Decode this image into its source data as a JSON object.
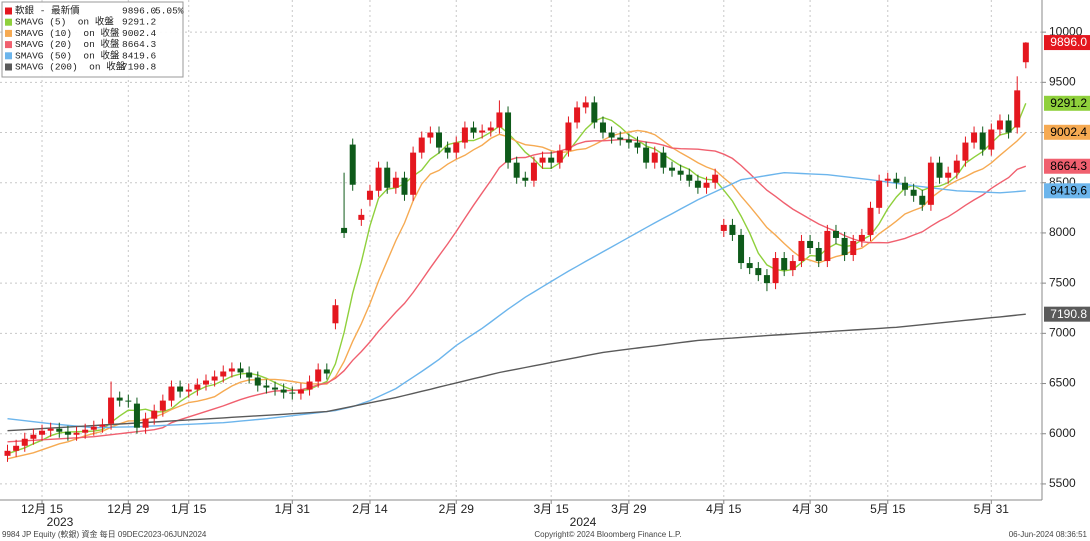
{
  "chart_data": {
    "type": "candlestick",
    "categories": [
      null,
      null,
      null,
      null,
      "12月 15",
      null,
      null,
      null,
      null,
      null,
      null,
      null,
      null,
      null,
      "12月 29",
      null,
      null,
      null,
      null,
      null,
      null,
      "1月 15",
      null,
      null,
      null,
      null,
      null,
      null,
      null,
      null,
      null,
      null,
      null,
      "1月 31",
      null,
      null,
      null,
      null,
      null,
      null,
      null,
      null,
      "2月 14",
      null,
      null,
      null,
      null,
      null,
      null,
      null,
      null,
      null,
      "2月 29",
      null,
      null,
      null,
      null,
      null,
      null,
      null,
      null,
      null,
      null,
      "3月 15",
      null,
      null,
      null,
      null,
      null,
      null,
      null,
      null,
      "3月 29",
      null,
      null,
      null,
      null,
      null,
      null,
      null,
      null,
      null,
      null,
      "4月 15",
      null,
      null,
      null,
      null,
      null,
      null,
      null,
      null,
      null,
      "4月 30",
      null,
      null,
      null,
      null,
      null,
      null,
      null,
      null,
      "5月 15",
      null,
      null,
      null,
      null,
      null,
      null,
      null,
      null,
      null,
      null,
      null,
      "5月 31",
      null,
      null,
      null,
      null
    ],
    "years": [
      "2023",
      "2024"
    ],
    "price": {
      "name": "軟銀 - 最新價",
      "last": {
        "value": 9896.0,
        "label": "9896.0"
      },
      "change": {
        "value": 5.05,
        "label": "5.05%"
      },
      "up_color": "#e4171f",
      "down_color": "#0e5a1a",
      "open": [
        5780,
        5830,
        5880,
        5950,
        5990,
        6030,
        6050,
        6020,
        5990,
        6010,
        6040,
        6070,
        6100,
        6360,
        6330,
        6300,
        6060,
        6150,
        6230,
        6330,
        6470,
        6420,
        6440,
        6490,
        6530,
        6570,
        6620,
        6650,
        6610,
        6560,
        6480,
        6460,
        6440,
        6410,
        6400,
        6440,
        6520,
        6640,
        7100,
        8050,
        8880,
        8130,
        8330,
        8420,
        8650,
        8450,
        8550,
        8380,
        8800,
        8950,
        9000,
        8850,
        8800,
        8900,
        9050,
        9000,
        9020,
        9050,
        9200,
        8700,
        8550,
        8520,
        8700,
        8750,
        8700,
        8820,
        9100,
        9250,
        9300,
        9100,
        9000,
        8950,
        8930,
        8900,
        8850,
        8700,
        8800,
        8650,
        8620,
        8580,
        8520,
        8450,
        8500,
        8020,
        8080,
        7980,
        7700,
        7650,
        7580,
        7500,
        7750,
        7630,
        7720,
        7920,
        7850,
        7720,
        8020,
        7950,
        7780,
        7920,
        7980,
        8250,
        8520,
        8540,
        8500,
        8430,
        8370,
        8280,
        8700,
        8550,
        8600,
        8720,
        8900,
        9000,
        8830,
        9030,
        9120,
        9050,
        9700
      ],
      "high": [
        5890,
        5940,
        6010,
        6050,
        6090,
        6110,
        6110,
        6080,
        6070,
        6100,
        6130,
        6150,
        6520,
        6420,
        6390,
        6360,
        6210,
        6290,
        6390,
        6530,
        6530,
        6500,
        6550,
        6590,
        6630,
        6680,
        6710,
        6710,
        6670,
        6620,
        6540,
        6520,
        6500,
        6470,
        6500,
        6580,
        6700,
        6700,
        7340,
        8600,
        8940,
        8240,
        8480,
        8710,
        8710,
        8610,
        8610,
        8860,
        9010,
        9060,
        9060,
        8910,
        8960,
        9110,
        9110,
        9080,
        9110,
        9320,
        9260,
        8760,
        8610,
        8760,
        8810,
        8810,
        8880,
        9160,
        9310,
        9360,
        9360,
        9160,
        9060,
        9010,
        8990,
        8960,
        8910,
        8860,
        8860,
        8710,
        8680,
        8640,
        8580,
        8560,
        8640,
        8140,
        8140,
        8040,
        7760,
        7710,
        7640,
        7810,
        7810,
        7780,
        7980,
        7980,
        7910,
        8080,
        8080,
        8010,
        7980,
        8040,
        8310,
        8580,
        8600,
        8600,
        8560,
        8490,
        8430,
        8760,
        8760,
        8660,
        8780,
        8960,
        9060,
        9060,
        9090,
        9180,
        9180,
        9560,
        9900
      ],
      "low": [
        5720,
        5770,
        5820,
        5890,
        5930,
        5970,
        5960,
        5930,
        5930,
        5950,
        5980,
        6010,
        6040,
        6270,
        6260,
        6000,
        6000,
        6090,
        6170,
        6270,
        6360,
        6360,
        6380,
        6430,
        6470,
        6510,
        6560,
        6550,
        6500,
        6420,
        6400,
        6380,
        6350,
        6340,
        6340,
        6380,
        6460,
        6540,
        7040,
        7950,
        8420,
        8070,
        8270,
        8360,
        8390,
        8390,
        8320,
        8320,
        8740,
        8890,
        8790,
        8740,
        8740,
        8840,
        8940,
        8940,
        8960,
        8990,
        8640,
        8490,
        8460,
        8460,
        8640,
        8640,
        8640,
        8760,
        9040,
        9190,
        9040,
        8940,
        8890,
        8870,
        8840,
        8790,
        8640,
        8640,
        8590,
        8560,
        8520,
        8460,
        8390,
        8390,
        8440,
        7960,
        7920,
        7640,
        7590,
        7520,
        7420,
        7440,
        7570,
        7570,
        7660,
        7790,
        7660,
        7660,
        7890,
        7720,
        7720,
        7860,
        7920,
        8190,
        8460,
        8440,
        8370,
        8310,
        8220,
        8220,
        8490,
        8490,
        8540,
        8660,
        8840,
        8770,
        8770,
        8970,
        8940,
        8990,
        9640
      ],
      "close": [
        5830,
        5880,
        5950,
        5990,
        6030,
        6050,
        6020,
        5990,
        6010,
        6040,
        6070,
        6090,
        6360,
        6330,
        6320,
        6060,
        6150,
        6230,
        6330,
        6470,
        6420,
        6440,
        6490,
        6530,
        6570,
        6620,
        6650,
        6610,
        6560,
        6480,
        6460,
        6440,
        6410,
        6400,
        6440,
        6520,
        6640,
        6600,
        7280,
        8000,
        8480,
        8180,
        8420,
        8650,
        8450,
        8550,
        8380,
        8800,
        8950,
        9000,
        8850,
        8800,
        8900,
        9050,
        9000,
        9020,
        9050,
        9200,
        8700,
        8550,
        8520,
        8700,
        8750,
        8700,
        8820,
        9100,
        9250,
        9300,
        9100,
        9000,
        8950,
        8930,
        8900,
        8850,
        8700,
        8800,
        8650,
        8620,
        8580,
        8520,
        8450,
        8500,
        8580,
        8080,
        7980,
        7700,
        7650,
        7580,
        7500,
        7750,
        7630,
        7720,
        7920,
        7850,
        7720,
        8020,
        7950,
        7780,
        7920,
        7980,
        8250,
        8520,
        8540,
        8500,
        8430,
        8370,
        8280,
        8700,
        8550,
        8600,
        8720,
        8900,
        9000,
        8830,
        9030,
        9120,
        9000,
        9420,
        9896
      ]
    },
    "series": [
      {
        "name": "SMAVG (5)  on 收盤",
        "color": "#8fd03c",
        "values": [
          5800,
          5830,
          5860,
          5900,
          5936,
          5980,
          6008,
          6016,
          6020,
          6022,
          6026,
          6040,
          6114,
          6178,
          6234,
          6232,
          6244,
          6218,
          6218,
          6248,
          6320,
          6378,
          6430,
          6470,
          6490,
          6530,
          6572,
          6596,
          6602,
          6584,
          6552,
          6510,
          6470,
          6438,
          6430,
          6442,
          6482,
          6520,
          6696,
          7008,
          7400,
          7708,
          8072,
          8346,
          8436,
          8450,
          8490,
          8566,
          8626,
          8736,
          8796,
          8880,
          8900,
          8920,
          8920,
          8954,
          9004,
          9064,
          8994,
          8904,
          8804,
          8734,
          8644,
          8644,
          8698,
          8814,
          8924,
          9034,
          9114,
          9150,
          9120,
          9056,
          8976,
          8926,
          8866,
          8836,
          8780,
          8724,
          8670,
          8634,
          8564,
          8534,
          8526,
          8426,
          8318,
          8168,
          7998,
          7798,
          7682,
          7636,
          7622,
          7636,
          7704,
          7774,
          7768,
          7846,
          7892,
          7864,
          7878,
          7930,
          7976,
          8090,
          8242,
          8358,
          8448,
          8472,
          8424,
          8456,
          8466,
          8500,
          8570,
          8694,
          8754,
          8810,
          8896,
          8976,
          8996,
          9080,
          9291.2
        ]
      },
      {
        "name": "SMAVG (10)  on 收盤",
        "color": "#f6aa52",
        "values": [
          5750,
          5770,
          5790,
          5810,
          5840,
          5870,
          5900,
          5920,
          5950,
          5979,
          6003,
          6024,
          6065,
          6099,
          6128,
          6129,
          6142,
          6166,
          6198,
          6241,
          6276,
          6311,
          6324,
          6344,
          6369,
          6425,
          6475,
          6513,
          6536,
          6537,
          6541,
          6541,
          6533,
          6520,
          6507,
          6497,
          6496,
          6495,
          6567,
          6719,
          6921,
          7095,
          7296,
          7521,
          7722,
          7925,
          8099,
          8319,
          8486,
          8586,
          8623,
          8685,
          8733,
          8773,
          8828,
          8875,
          8942,
          8982,
          8957,
          8912,
          8879,
          8869,
          8854,
          8819,
          8801,
          8809,
          8829,
          8839,
          8879,
          8924,
          8967,
          8990,
          9005,
          9020,
          9008,
          8978,
          8918,
          8850,
          8798,
          8750,
          8700,
          8657,
          8625,
          8548,
          8476,
          8366,
          8266,
          8162,
          8054,
          7977,
          7895,
          7817,
          7751,
          7728,
          7702,
          7734,
          7764,
          7784,
          7826,
          7849,
          7911,
          7991,
          8053,
          8118,
          8189,
          8224,
          8257,
          8349,
          8412,
          8474,
          8521,
          8559,
          8605,
          8638,
          8698,
          8773,
          8845,
          8917,
          9002.4
        ]
      },
      {
        "name": "SMAVG (20)  on 收盤",
        "color": "#f0606f",
        "values": [
          5920,
          5925,
          5930,
          5935,
          5940,
          5945,
          5950,
          5955,
          5960,
          5965,
          5970,
          5980,
          5990,
          6000,
          6010,
          6020,
          6030,
          6040,
          6060,
          6110,
          6140,
          6168,
          6195,
          6222,
          6249,
          6277,
          6309,
          6340,
          6367,
          6389,
          6409,
          6426,
          6429,
          6432,
          6438,
          6461,
          6486,
          6504,
          6552,
          6628,
          6731,
          6818,
          6915,
          7021,
          7115,
          7211,
          7298,
          7407,
          7527,
          7653,
          7772,
          7890,
          8015,
          8147,
          8275,
          8400,
          8521,
          8651,
          8722,
          8749,
          8751,
          8777,
          8794,
          8796,
          8815,
          8842,
          8886,
          8911,
          8918,
          8918,
          8923,
          8930,
          8930,
          8920,
          8905,
          8894,
          8874,
          8845,
          8839,
          8837,
          8834,
          8824,
          8815,
          8784,
          8742,
          8672,
          8592,
          8506,
          8426,
          8364,
          8298,
          8237,
          8188,
          8138,
          8089,
          8050,
          8015,
          7973,
          7940,
          7913,
          7903,
          7904,
          7902,
          7923,
          7946,
          7979,
          8011,
          8067,
          8119,
          8162,
          8216,
          8275,
          8329,
          8378,
          8444,
          8499,
          8551,
          8633,
          8664.3
        ]
      },
      {
        "name": "SMAVG (50)  on 收盤",
        "color": "#6cb5ec",
        "values": [
          6150,
          6140,
          6130,
          6120,
          6110,
          6100,
          6092,
          6084,
          6076,
          6068,
          6060,
          6062,
          6064,
          6066,
          6068,
          6070,
          6074,
          6078,
          6082,
          6086,
          6090,
          6094,
          6098,
          6102,
          6106,
          6110,
          6118,
          6126,
          6134,
          6142,
          6150,
          6160,
          6170,
          6180,
          6190,
          6200,
          6210,
          6220,
          6230,
          6250,
          6270,
          6300,
          6330,
          6370,
          6410,
          6450,
          6507,
          6563,
          6620,
          6680,
          6740,
          6810,
          6880,
          6937,
          6993,
          7050,
          7113,
          7177,
          7240,
          7300,
          7360,
          7412,
          7464,
          7516,
          7568,
          7620,
          7668,
          7716,
          7764,
          7812,
          7860,
          7908,
          7956,
          8004,
          8052,
          8100,
          8146,
          8192,
          8238,
          8284,
          8330,
          8370,
          8410,
          8450,
          8490,
          8530,
          8544,
          8558,
          8572,
          8586,
          8600,
          8596,
          8592,
          8588,
          8584,
          8580,
          8570,
          8560,
          8550,
          8540,
          8530,
          8518,
          8506,
          8494,
          8482,
          8470,
          8460,
          8450,
          8440,
          8430,
          8420,
          8416,
          8412,
          8408,
          8404,
          8400,
          8406,
          8413,
          8419.6
        ]
      },
      {
        "name": "SMAVG (200)  on 收盤",
        "color": "#5a5a5a",
        "values": [
          6030,
          6035,
          6040,
          6045,
          6051,
          6056,
          6061,
          6066,
          6071,
          6076,
          6081,
          6087,
          6092,
          6097,
          6102,
          6107,
          6112,
          6117,
          6122,
          6128,
          6133,
          6138,
          6143,
          6148,
          6153,
          6158,
          6164,
          6169,
          6174,
          6179,
          6184,
          6189,
          6194,
          6200,
          6205,
          6210,
          6215,
          6220,
          6238,
          6255,
          6273,
          6290,
          6308,
          6325,
          6343,
          6360,
          6381,
          6402,
          6423,
          6443,
          6464,
          6485,
          6506,
          6527,
          6548,
          6568,
          6589,
          6610,
          6627,
          6643,
          6660,
          6677,
          6693,
          6710,
          6727,
          6743,
          6760,
          6777,
          6793,
          6810,
          6821,
          6832,
          6843,
          6854,
          6865,
          6875,
          6886,
          6897,
          6908,
          6919,
          6930,
          6936,
          6942,
          6948,
          6953,
          6959,
          6965,
          6971,
          6977,
          6983,
          6988,
          6994,
          7000,
          7005,
          7011,
          7016,
          7022,
          7027,
          7033,
          7038,
          7044,
          7049,
          7055,
          7060,
          7069,
          7077,
          7086,
          7095,
          7104,
          7112,
          7121,
          7130,
          7138,
          7147,
          7156,
          7164,
          7173,
          7182,
          7190.8
        ]
      }
    ],
    "ylim": [
      5340,
      10320
    ],
    "yticks": [
      5500,
      6000,
      6500,
      7000,
      7500,
      8000,
      8500,
      9000,
      9500,
      10000
    ],
    "grid": true,
    "legend": "upper left",
    "footer": {
      "left": "9984 JP Equity (軟銀) 資金  每日 09DEC2023-06JUN2024",
      "center": "Copyright© 2024 Bloomberg Finance L.P.",
      "right": "06-Jun-2024 08:36:51"
    }
  }
}
